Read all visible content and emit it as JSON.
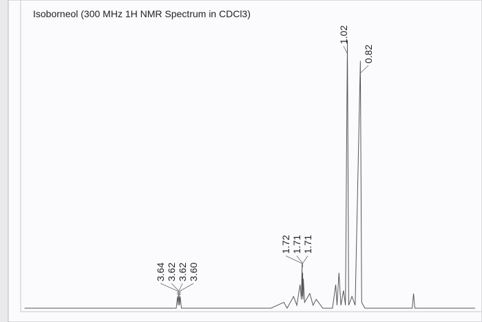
{
  "chart_data": {
    "type": "spectrum",
    "title": "Isoborneol (300 MHz 1H NMR Spectrum in CDCl3)",
    "xlim": [
      6.06,
      -0.95
    ],
    "ylim": [
      0,
      100
    ],
    "color": "#555555",
    "series": [
      {
        "x": [
          6.0,
          3.66,
          3.64,
          3.63,
          3.62,
          3.61,
          3.6,
          3.58,
          2.2,
          2.0,
          1.95,
          1.85,
          1.8,
          1.75,
          1.73,
          1.72,
          1.715,
          1.71,
          1.705,
          1.7,
          1.68,
          1.6,
          1.55,
          1.5,
          1.4,
          1.25,
          1.2,
          1.18,
          1.15,
          1.12,
          1.08,
          1.05,
          1.02,
          1.0,
          0.95,
          0.9,
          0.82,
          0.8,
          0.75,
          0.02,
          0.0,
          -0.02,
          -0.95
        ],
        "values": [
          0,
          0,
          4,
          1,
          6,
          1,
          4,
          0,
          0,
          2,
          0,
          4,
          1,
          8,
          3,
          14,
          4,
          12,
          3,
          10,
          2,
          5,
          1,
          3,
          0,
          0,
          8,
          1,
          12,
          1,
          6,
          1,
          91,
          1,
          4,
          1,
          84,
          2,
          0,
          0,
          5,
          0,
          0
        ]
      }
    ],
    "peak_labels": [
      {
        "label": "3.64",
        "x": 3.64
      },
      {
        "label": "3.62",
        "x": 3.62
      },
      {
        "label": "3.62",
        "x": 3.62
      },
      {
        "label": "3.60",
        "x": 3.6
      },
      {
        "label": "1.72",
        "x": 1.72
      },
      {
        "label": "1.71",
        "x": 1.71
      },
      {
        "label": "1.71",
        "x": 1.71
      },
      {
        "label": "1.02",
        "x": 1.02
      },
      {
        "label": "0.82",
        "x": 0.82
      }
    ]
  }
}
